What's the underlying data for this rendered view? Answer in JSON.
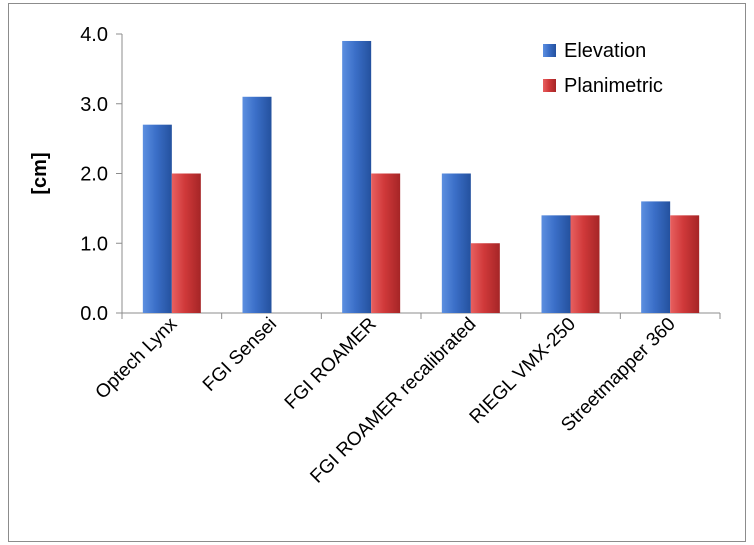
{
  "chart_data": {
    "type": "bar",
    "title": "",
    "xlabel": "",
    "ylabel": "[cm]",
    "ylim": [
      0,
      4
    ],
    "yticks": [
      "0.0",
      "1.0",
      "2.0",
      "3.0",
      "4.0"
    ],
    "grid": false,
    "legend_position": "top-right",
    "categories": [
      "Optech Lynx",
      "FGI Sensei",
      "FGI ROAMER",
      "FGI ROAMER recalibrated",
      "RIEGL VMX-250",
      "Streetmapper 360"
    ],
    "series": [
      {
        "name": "Elevation",
        "color": "#3b6fc8",
        "values": [
          2.7,
          3.1,
          3.9,
          2.0,
          1.4,
          1.6
        ]
      },
      {
        "name": "Planimetric",
        "color": "#d0393a",
        "values": [
          2.0,
          null,
          2.0,
          1.0,
          1.4,
          1.4
        ]
      }
    ]
  }
}
